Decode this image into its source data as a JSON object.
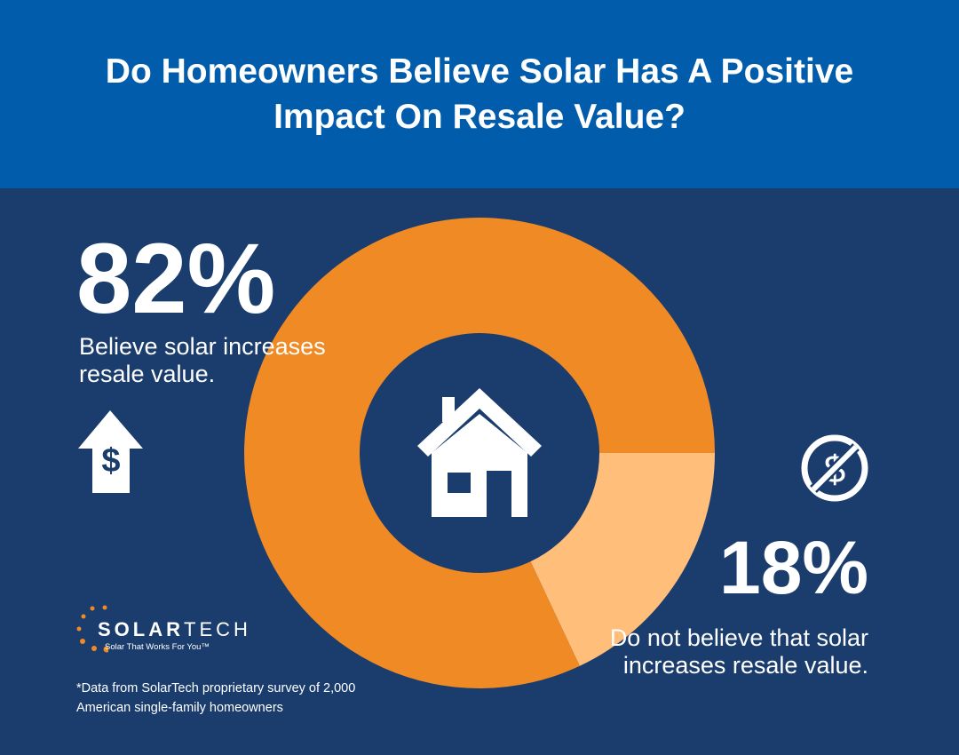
{
  "header": {
    "title": "Do Homeowners Believe Solar Has A Positive Impact On Resale Value?"
  },
  "chart_data": {
    "type": "pie",
    "variant": "donut",
    "title": "Do Homeowners Believe Solar Has A Positive Impact On Resale Value?",
    "categories": [
      "Believe solar increases resale value.",
      "Do not believe that solar increases resale value."
    ],
    "values": [
      82,
      18
    ],
    "labels": [
      "82%",
      "18%"
    ],
    "colors": [
      "#f08a24",
      "#ffbe7a"
    ]
  },
  "stats": {
    "yes": {
      "value": "82%",
      "label": "Believe solar increases resale value.",
      "icon": "dollar-up-arrow-icon"
    },
    "no": {
      "value": "18%",
      "label": "Do not believe that solar increases resale value.",
      "icon": "no-dollar-icon"
    }
  },
  "center_icon": "house-icon",
  "logo": {
    "name_bold": "SOLAR",
    "name_light": "TECH",
    "tagline": "Solar That Works For You™"
  },
  "footnote": "*Data from SolarTech proprietary survey of 2,000 American single-family homeowners",
  "colors": {
    "header": "#015cab",
    "background": "#1b3d6d",
    "accent": "#f08a24",
    "accent_light": "#ffbe7a"
  }
}
